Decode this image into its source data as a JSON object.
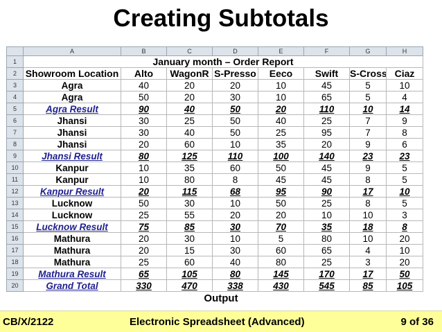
{
  "slide_title": "Creating Subtotals",
  "column_letters": [
    "A",
    "B",
    "C",
    "D",
    "E",
    "F",
    "G",
    "H"
  ],
  "report_title": "January month – Order Report",
  "table_headers": [
    "Showroom Location",
    "Alto",
    "WagonR",
    "S-Presso",
    "Eeco",
    "Swift",
    "S-Cross",
    "Ciaz"
  ],
  "rows": [
    {
      "n": "3",
      "type": "data",
      "cells": [
        "Agra",
        "40",
        "20",
        "20",
        "10",
        "45",
        "5",
        "10"
      ]
    },
    {
      "n": "4",
      "type": "data",
      "cells": [
        "Agra",
        "50",
        "20",
        "30",
        "10",
        "65",
        "5",
        "4"
      ]
    },
    {
      "n": "5",
      "type": "subtotal",
      "cells": [
        "Agra Result",
        "90",
        "40",
        "50",
        "20",
        "110",
        "10",
        "14"
      ]
    },
    {
      "n": "6",
      "type": "data",
      "cells": [
        "Jhansi",
        "30",
        "25",
        "50",
        "40",
        "25",
        "7",
        "9"
      ]
    },
    {
      "n": "7",
      "type": "data",
      "cells": [
        "Jhansi",
        "30",
        "40",
        "50",
        "25",
        "95",
        "7",
        "8"
      ]
    },
    {
      "n": "8",
      "type": "data",
      "cells": [
        "Jhansi",
        "20",
        "60",
        "10",
        "35",
        "20",
        "9",
        "6"
      ]
    },
    {
      "n": "9",
      "type": "subtotal",
      "cells": [
        "Jhansi Result",
        "80",
        "125",
        "110",
        "100",
        "140",
        "23",
        "23"
      ]
    },
    {
      "n": "10",
      "type": "data",
      "cells": [
        "Kanpur",
        "10",
        "35",
        "60",
        "50",
        "45",
        "9",
        "5"
      ]
    },
    {
      "n": "11",
      "type": "data",
      "cells": [
        "Kanpur",
        "10",
        "80",
        "8",
        "45",
        "45",
        "8",
        "5"
      ]
    },
    {
      "n": "12",
      "type": "subtotal",
      "cells": [
        "Kanpur Result",
        "20",
        "115",
        "68",
        "95",
        "90",
        "17",
        "10"
      ]
    },
    {
      "n": "13",
      "type": "data",
      "cells": [
        "Lucknow",
        "50",
        "30",
        "10",
        "50",
        "25",
        "8",
        "5"
      ]
    },
    {
      "n": "14",
      "type": "data",
      "cells": [
        "Lucknow",
        "25",
        "55",
        "20",
        "20",
        "10",
        "10",
        "3"
      ]
    },
    {
      "n": "15",
      "type": "subtotal",
      "cells": [
        "Lucknow Result",
        "75",
        "85",
        "30",
        "70",
        "35",
        "18",
        "8"
      ]
    },
    {
      "n": "16",
      "type": "data",
      "cells": [
        "Mathura",
        "20",
        "30",
        "10",
        "5",
        "80",
        "10",
        "20"
      ]
    },
    {
      "n": "17",
      "type": "data",
      "cells": [
        "Mathura",
        "20",
        "15",
        "30",
        "60",
        "65",
        "4",
        "10"
      ]
    },
    {
      "n": "18",
      "type": "data",
      "cells": [
        "Mathura",
        "25",
        "60",
        "40",
        "80",
        "25",
        "3",
        "20"
      ]
    },
    {
      "n": "19",
      "type": "subtotal",
      "cells": [
        "Mathura Result",
        "65",
        "105",
        "80",
        "145",
        "170",
        "17",
        "50"
      ]
    },
    {
      "n": "20",
      "type": "subtotal",
      "cells": [
        "Grand Total",
        "330",
        "470",
        "338",
        "430",
        "545",
        "85",
        "105"
      ]
    }
  ],
  "caption": "Output",
  "footer": {
    "left": "CB/X/2122",
    "center": "Electronic Spreadsheet (Advanced)",
    "right": "9 of 36",
    "background_color": "#ffff99"
  }
}
